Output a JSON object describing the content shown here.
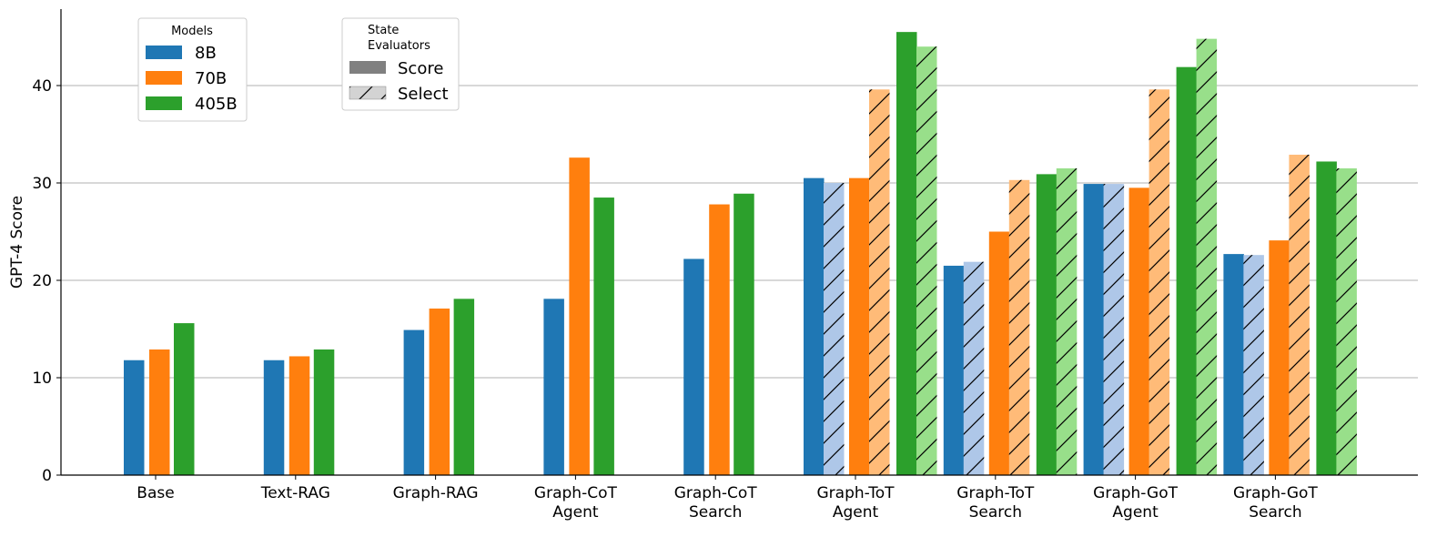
{
  "chart_data": {
    "type": "bar",
    "title": "",
    "xlabel": "",
    "ylabel": "GPT-4 Score",
    "ylim": [
      0,
      48
    ],
    "yticks": [
      0,
      10,
      20,
      30,
      40
    ],
    "grid": "y",
    "categories": [
      [
        "Base"
      ],
      [
        "Text-RAG"
      ],
      [
        "Graph-RAG"
      ],
      [
        "Graph-CoT",
        "Agent"
      ],
      [
        "Graph-CoT",
        "Search"
      ],
      [
        "Graph-ToT",
        "Agent"
      ],
      [
        "Graph-ToT",
        "Search"
      ],
      [
        "Graph-GoT",
        "Agent"
      ],
      [
        "Graph-GoT",
        "Search"
      ]
    ],
    "series": [
      {
        "name": "8B",
        "evaluator": "Score",
        "color": "#1f77b4",
        "values": [
          11.8,
          11.8,
          14.9,
          18.1,
          22.2,
          30.5,
          21.5,
          29.9,
          22.7
        ]
      },
      {
        "name": "8B",
        "evaluator": "Select",
        "color": "#aec7e8",
        "values": [
          null,
          null,
          null,
          null,
          null,
          30.0,
          21.9,
          29.9,
          22.6
        ]
      },
      {
        "name": "70B",
        "evaluator": "Score",
        "color": "#ff7f0e",
        "values": [
          12.9,
          12.2,
          17.1,
          32.6,
          27.8,
          30.5,
          25.0,
          29.5,
          24.1
        ]
      },
      {
        "name": "70B",
        "evaluator": "Select",
        "color": "#ffbb78",
        "values": [
          null,
          null,
          null,
          null,
          null,
          39.6,
          30.3,
          39.6,
          32.9
        ]
      },
      {
        "name": "405B",
        "evaluator": "Score",
        "color": "#2ca02c",
        "values": [
          15.6,
          12.9,
          18.1,
          28.5,
          28.9,
          45.5,
          30.9,
          41.9,
          32.2
        ]
      },
      {
        "name": "405B",
        "evaluator": "Select",
        "color": "#98df8a",
        "values": [
          null,
          null,
          null,
          null,
          null,
          44.0,
          31.5,
          44.8,
          31.5
        ]
      }
    ],
    "legends": [
      {
        "title": "Models",
        "placement": "top-left",
        "entries": [
          {
            "label": "8B",
            "color": "#1f77b4"
          },
          {
            "label": "70B",
            "color": "#ff7f0e"
          },
          {
            "label": "405B",
            "color": "#2ca02c"
          }
        ]
      },
      {
        "title_lines": [
          "State",
          "Evaluators"
        ],
        "placement": "top-left",
        "entries": [
          {
            "label": "Score",
            "style": "solid",
            "color": "#808080"
          },
          {
            "label": "Select",
            "style": "hatched",
            "color": "#d3d3d3"
          }
        ]
      }
    ]
  }
}
